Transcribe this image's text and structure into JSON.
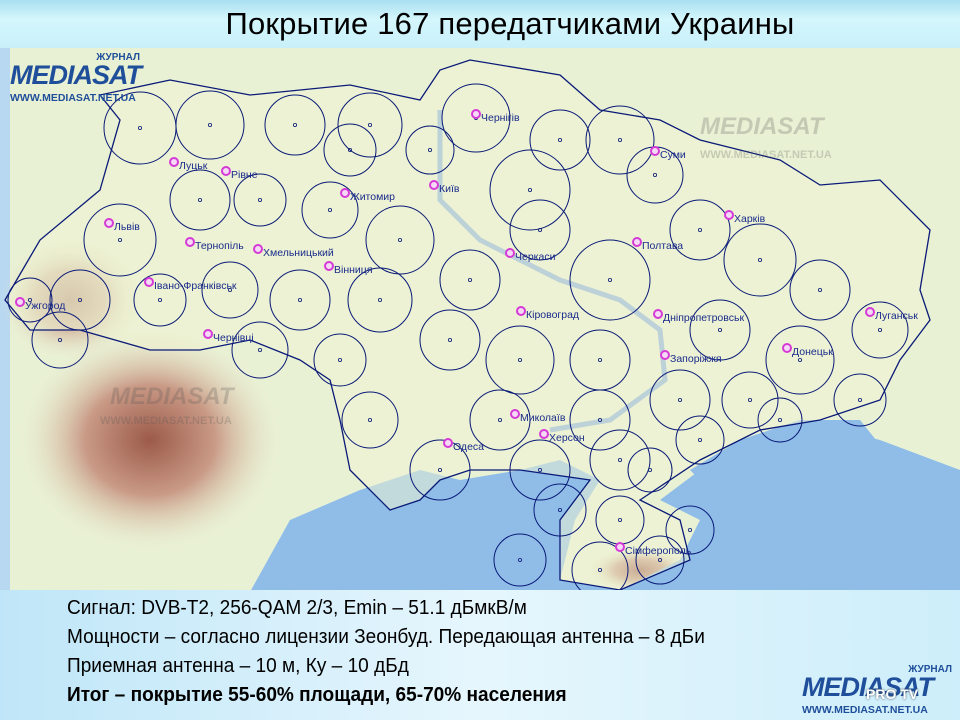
{
  "title": "Покрытие 167 передатчиками Украины",
  "logo": {
    "journal": "ЖУРНАЛ",
    "name": "MEDIASAT",
    "url": "WWW.MEDIASAT.NET.UA",
    "badge": "PRO TV"
  },
  "map": {
    "cities": [
      {
        "name": "Луцьк"
      },
      {
        "name": "Рівне"
      },
      {
        "name": "Житомир"
      },
      {
        "name": "Київ"
      },
      {
        "name": "Чернігів"
      },
      {
        "name": "Суми"
      },
      {
        "name": "Харків"
      },
      {
        "name": "Полтава"
      },
      {
        "name": "Черкаси"
      },
      {
        "name": "Львів"
      },
      {
        "name": "Тернопіль"
      },
      {
        "name": "Хмельницький"
      },
      {
        "name": "Вінниця"
      },
      {
        "name": "Івано-Франківськ"
      },
      {
        "name": "Ужгород"
      },
      {
        "name": "Чернівці"
      },
      {
        "name": "Кіровоград"
      },
      {
        "name": "Дніпропетровськ"
      },
      {
        "name": "Луганськ"
      },
      {
        "name": "Донецьк"
      },
      {
        "name": "Запоріжжя"
      },
      {
        "name": "Миколаїв"
      },
      {
        "name": "Херсон"
      },
      {
        "name": "Одеса"
      },
      {
        "name": "Сімферополь"
      }
    ],
    "colors": {
      "land": "#eef2d2",
      "sea": "#8fbde8",
      "coverage": "#0a1a78",
      "marker": "#d63ad6"
    }
  },
  "notes": [
    "Сигнал: DVB-T2, 256-QAM 2/3, Emin – 51.1 дБмкВ/м",
    "Мощности – согласно лицензии Зеонбуд. Передающая антенна – 8 дБи",
    "Приемная антенна – 10 м, Ку – 10 дБд",
    "Итог – покрытие 55-60% площади, 65-70% населения"
  ]
}
